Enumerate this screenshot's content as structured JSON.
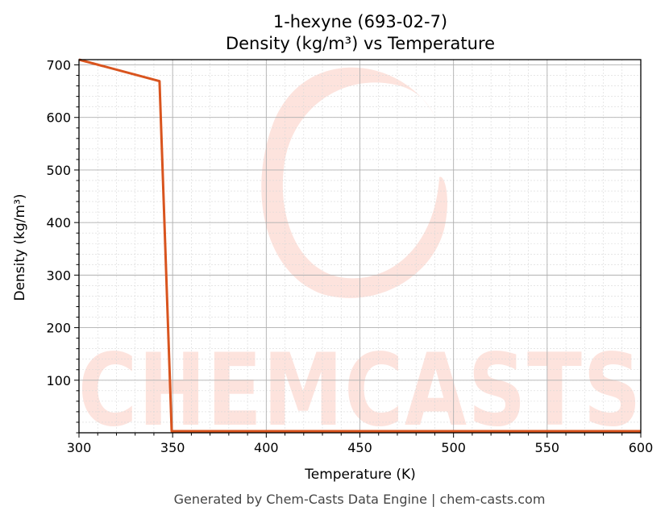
{
  "chart_data": {
    "type": "line",
    "title": "1-hexyne (693-02-7)",
    "subtitle": "Density (kg/m³) vs Temperature",
    "xlabel": "Temperature (K)",
    "ylabel": "Density (kg/m³)",
    "xlim": [
      300,
      600
    ],
    "ylim": [
      0,
      710
    ],
    "x_ticks": [
      300,
      350,
      400,
      450,
      500,
      550,
      600
    ],
    "y_ticks": [
      100,
      200,
      300,
      400,
      500,
      600,
      700
    ],
    "grid": true,
    "minor_grid": true,
    "series": [
      {
        "color": "#d9541e",
        "x": [
          300,
          343,
          349.5,
          350,
          400,
          450,
          500,
          550,
          600
        ],
        "y": [
          710,
          669,
          3,
          3,
          3,
          3,
          3,
          3,
          3
        ]
      }
    ]
  },
  "watermark": {
    "text": "CHEMCASTS",
    "color": "#fde3dd"
  },
  "footer": "Generated by Chem-Casts Data Engine | chem-casts.com"
}
